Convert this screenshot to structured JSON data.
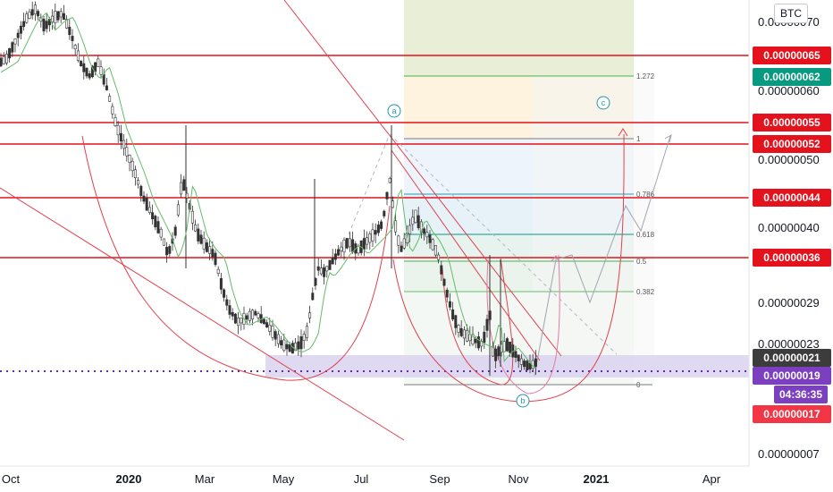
{
  "chart_data": {
    "type": "candlestick",
    "currency": "BTC",
    "x_ticks": [
      "Oct",
      "2020",
      "Mar",
      "May",
      "Jul",
      "Sep",
      "Nov",
      "2021",
      "Apr"
    ],
    "y_ticks": [
      "0.00000070",
      "0.00000060",
      "0.00000050",
      "0.00000040",
      "0.00000029",
      "0.00000023",
      "0.00000007"
    ],
    "red_levels": [
      {
        "label": "0.00000065",
        "value": 6.5e-07
      },
      {
        "label": "0.00000055",
        "value": 5.5e-07
      },
      {
        "label": "0.00000052",
        "value": 5.2e-07
      },
      {
        "label": "0.00000044",
        "value": 4.4e-07
      },
      {
        "label": "0.00000036",
        "value": 3.6e-07
      }
    ],
    "price_badges": [
      {
        "label": "0.00000062",
        "color": "#089981"
      },
      {
        "label": "0.00000021",
        "color": "#3c3c3c"
      },
      {
        "label": "0.00000019",
        "color": "#7b3fbf"
      },
      {
        "label": "04:36:35",
        "color": "#7b3fbf"
      },
      {
        "label": "0.00000017",
        "color": "#f23645"
      }
    ],
    "fib_levels": [
      {
        "label": "1.272",
        "color": "#4caf50"
      },
      {
        "label": "1",
        "color": "#787b86"
      },
      {
        "label": "0.786",
        "color": "#26a0b0"
      },
      {
        "label": "0.618",
        "color": "#089981"
      },
      {
        "label": "0.5",
        "color": "#4caf50"
      },
      {
        "label": "0.382",
        "color": "#66bb6a"
      },
      {
        "label": "0",
        "color": "#787b86"
      }
    ],
    "wave_labels": [
      "a",
      "b",
      "c"
    ],
    "colors": {
      "up": "#26a69a",
      "down": "#ef5350",
      "candle": "#333333",
      "ma": "#66bb6a",
      "level": "#e3121c",
      "current": "#5b2fa5"
    }
  }
}
